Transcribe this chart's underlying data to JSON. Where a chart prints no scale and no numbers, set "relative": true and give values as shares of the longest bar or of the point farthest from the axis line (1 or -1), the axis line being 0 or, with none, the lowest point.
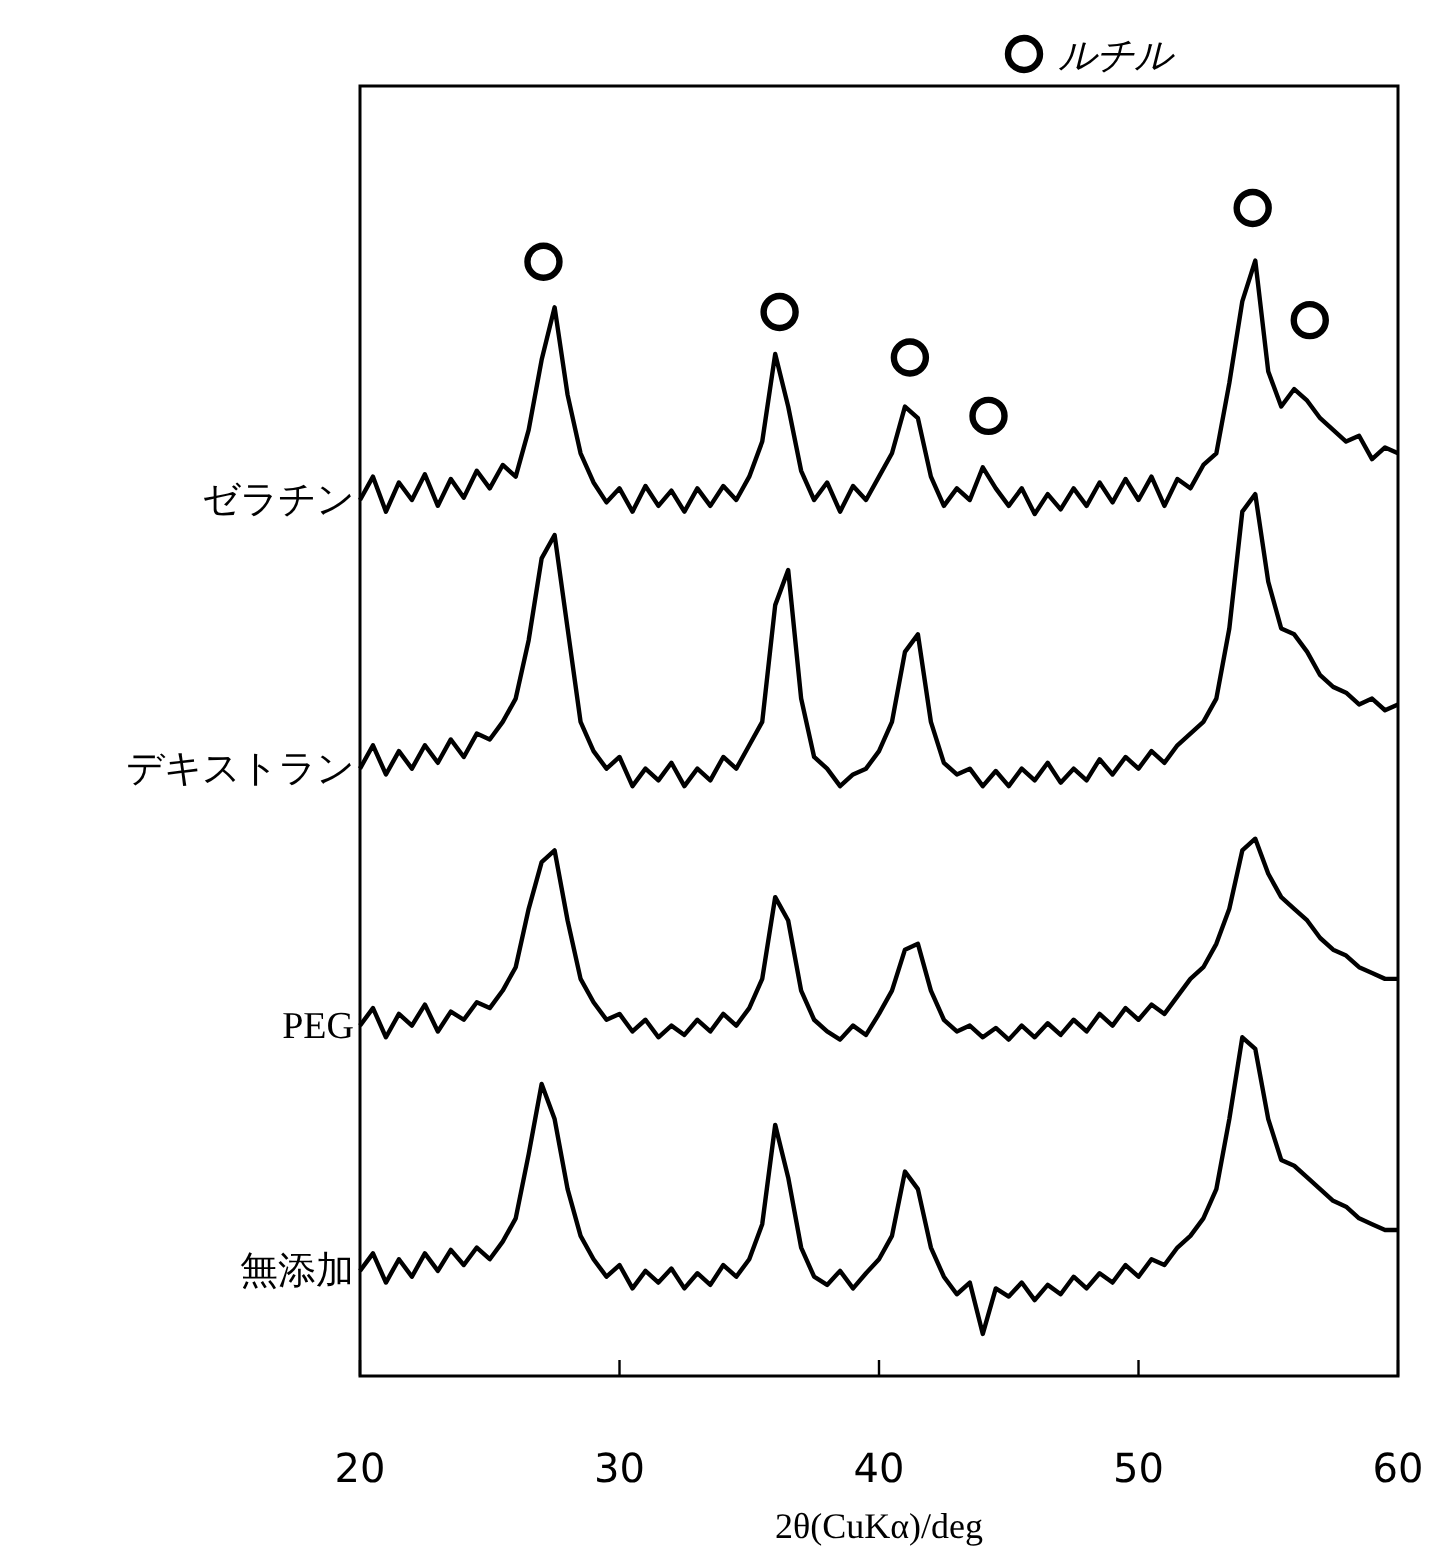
{
  "chart_data": {
    "type": "line",
    "xlabel": "2θ(CuKα)/deg",
    "relative": true,
    "xlim": [
      20,
      60
    ],
    "xticks": [
      20,
      30,
      40,
      50,
      60
    ],
    "legend": "top right",
    "x": [
      20,
      20.5,
      21,
      21.5,
      22,
      22.5,
      23,
      23.5,
      24,
      24.5,
      25,
      25.5,
      26,
      26.5,
      27,
      27.5,
      28,
      28.5,
      29,
      29.5,
      30,
      30.5,
      31,
      31.5,
      32,
      32.5,
      33,
      33.5,
      34,
      34.5,
      35,
      35.5,
      36,
      36.5,
      37,
      37.5,
      38,
      38.5,
      39,
      39.5,
      40,
      40.5,
      41,
      41.5,
      42,
      42.5,
      43,
      43.5,
      44,
      44.5,
      45,
      45.5,
      46,
      46.5,
      47,
      47.5,
      48,
      48.5,
      49,
      49.5,
      50,
      50.5,
      51,
      51.5,
      52,
      52.5,
      53,
      53.5,
      54,
      54.5,
      55,
      55.5,
      56,
      56.5,
      57,
      57.5,
      58,
      58.5,
      59,
      59.5,
      60
    ],
    "series": [
      {
        "name": "ゼラチン",
        "color": "#000000",
        "values": [
          0.75,
          0.77,
          0.74,
          0.765,
          0.75,
          0.772,
          0.745,
          0.768,
          0.752,
          0.775,
          0.76,
          0.78,
          0.77,
          0.81,
          0.87,
          0.915,
          0.84,
          0.79,
          0.765,
          0.748,
          0.76,
          0.74,
          0.762,
          0.745,
          0.758,
          0.74,
          0.76,
          0.745,
          0.762,
          0.75,
          0.77,
          0.8,
          0.875,
          0.83,
          0.775,
          0.75,
          0.765,
          0.74,
          0.762,
          0.75,
          0.77,
          0.79,
          0.83,
          0.82,
          0.77,
          0.745,
          0.76,
          0.75,
          0.778,
          0.76,
          0.745,
          0.76,
          0.738,
          0.755,
          0.742,
          0.76,
          0.745,
          0.765,
          0.748,
          0.768,
          0.75,
          0.77,
          0.745,
          0.768,
          0.76,
          0.78,
          0.79,
          0.85,
          0.92,
          0.955,
          0.86,
          0.83,
          0.845,
          0.835,
          0.82,
          0.81,
          0.8,
          0.805,
          0.785,
          0.795,
          0.79
        ]
      },
      {
        "name": "デキストラン",
        "color": "#000000",
        "values": [
          0.52,
          0.54,
          0.515,
          0.535,
          0.52,
          0.54,
          0.525,
          0.545,
          0.53,
          0.55,
          0.545,
          0.56,
          0.58,
          0.63,
          0.7,
          0.72,
          0.64,
          0.56,
          0.535,
          0.52,
          0.53,
          0.505,
          0.52,
          0.51,
          0.525,
          0.505,
          0.52,
          0.51,
          0.53,
          0.52,
          0.54,
          0.56,
          0.66,
          0.69,
          0.58,
          0.53,
          0.52,
          0.505,
          0.515,
          0.52,
          0.535,
          0.56,
          0.62,
          0.635,
          0.56,
          0.525,
          0.515,
          0.52,
          0.505,
          0.518,
          0.505,
          0.52,
          0.51,
          0.525,
          0.508,
          0.52,
          0.51,
          0.528,
          0.515,
          0.53,
          0.52,
          0.535,
          0.525,
          0.54,
          0.55,
          0.56,
          0.58,
          0.64,
          0.74,
          0.755,
          0.68,
          0.64,
          0.635,
          0.62,
          0.6,
          0.59,
          0.585,
          0.575,
          0.58,
          0.57,
          0.575
        ]
      },
      {
        "name": "PEG",
        "color": "#000000",
        "values": [
          0.3,
          0.315,
          0.29,
          0.31,
          0.3,
          0.318,
          0.295,
          0.312,
          0.305,
          0.32,
          0.315,
          0.33,
          0.35,
          0.4,
          0.44,
          0.45,
          0.39,
          0.34,
          0.32,
          0.305,
          0.31,
          0.295,
          0.305,
          0.29,
          0.3,
          0.292,
          0.305,
          0.295,
          0.31,
          0.3,
          0.315,
          0.34,
          0.41,
          0.39,
          0.33,
          0.305,
          0.295,
          0.288,
          0.3,
          0.292,
          0.31,
          0.33,
          0.365,
          0.37,
          0.33,
          0.305,
          0.295,
          0.3,
          0.29,
          0.298,
          0.288,
          0.3,
          0.29,
          0.302,
          0.292,
          0.305,
          0.295,
          0.31,
          0.3,
          0.315,
          0.305,
          0.318,
          0.31,
          0.325,
          0.34,
          0.35,
          0.37,
          0.4,
          0.45,
          0.46,
          0.43,
          0.41,
          0.4,
          0.39,
          0.375,
          0.365,
          0.36,
          0.35,
          0.345,
          0.34,
          0.34
        ]
      },
      {
        "name": "無添加",
        "color": "#000000",
        "values": [
          0.09,
          0.105,
          0.08,
          0.1,
          0.085,
          0.105,
          0.09,
          0.108,
          0.095,
          0.11,
          0.1,
          0.115,
          0.135,
          0.19,
          0.25,
          0.22,
          0.16,
          0.12,
          0.1,
          0.085,
          0.095,
          0.075,
          0.09,
          0.08,
          0.092,
          0.075,
          0.088,
          0.078,
          0.095,
          0.085,
          0.1,
          0.13,
          0.215,
          0.17,
          0.11,
          0.085,
          0.078,
          0.09,
          0.075,
          0.088,
          0.1,
          0.12,
          0.175,
          0.16,
          0.11,
          0.085,
          0.07,
          0.08,
          0.036,
          0.075,
          0.068,
          0.08,
          0.065,
          0.078,
          0.07,
          0.085,
          0.075,
          0.088,
          0.08,
          0.095,
          0.085,
          0.1,
          0.095,
          0.11,
          0.12,
          0.135,
          0.16,
          0.22,
          0.29,
          0.28,
          0.22,
          0.185,
          0.18,
          0.17,
          0.16,
          0.15,
          0.145,
          0.135,
          0.13,
          0.125,
          0.125
        ]
      },
      {
        "name": "ルチル",
        "type": "scatter",
        "marker": "circle",
        "color": "#000000",
        "x": [
          27.07,
          36.17,
          41.19,
          44.22,
          54.4,
          56.6
        ],
        "values": [
          0.954,
          0.911,
          0.872,
          0.822,
          1,
          0.904
        ]
      }
    ]
  }
}
